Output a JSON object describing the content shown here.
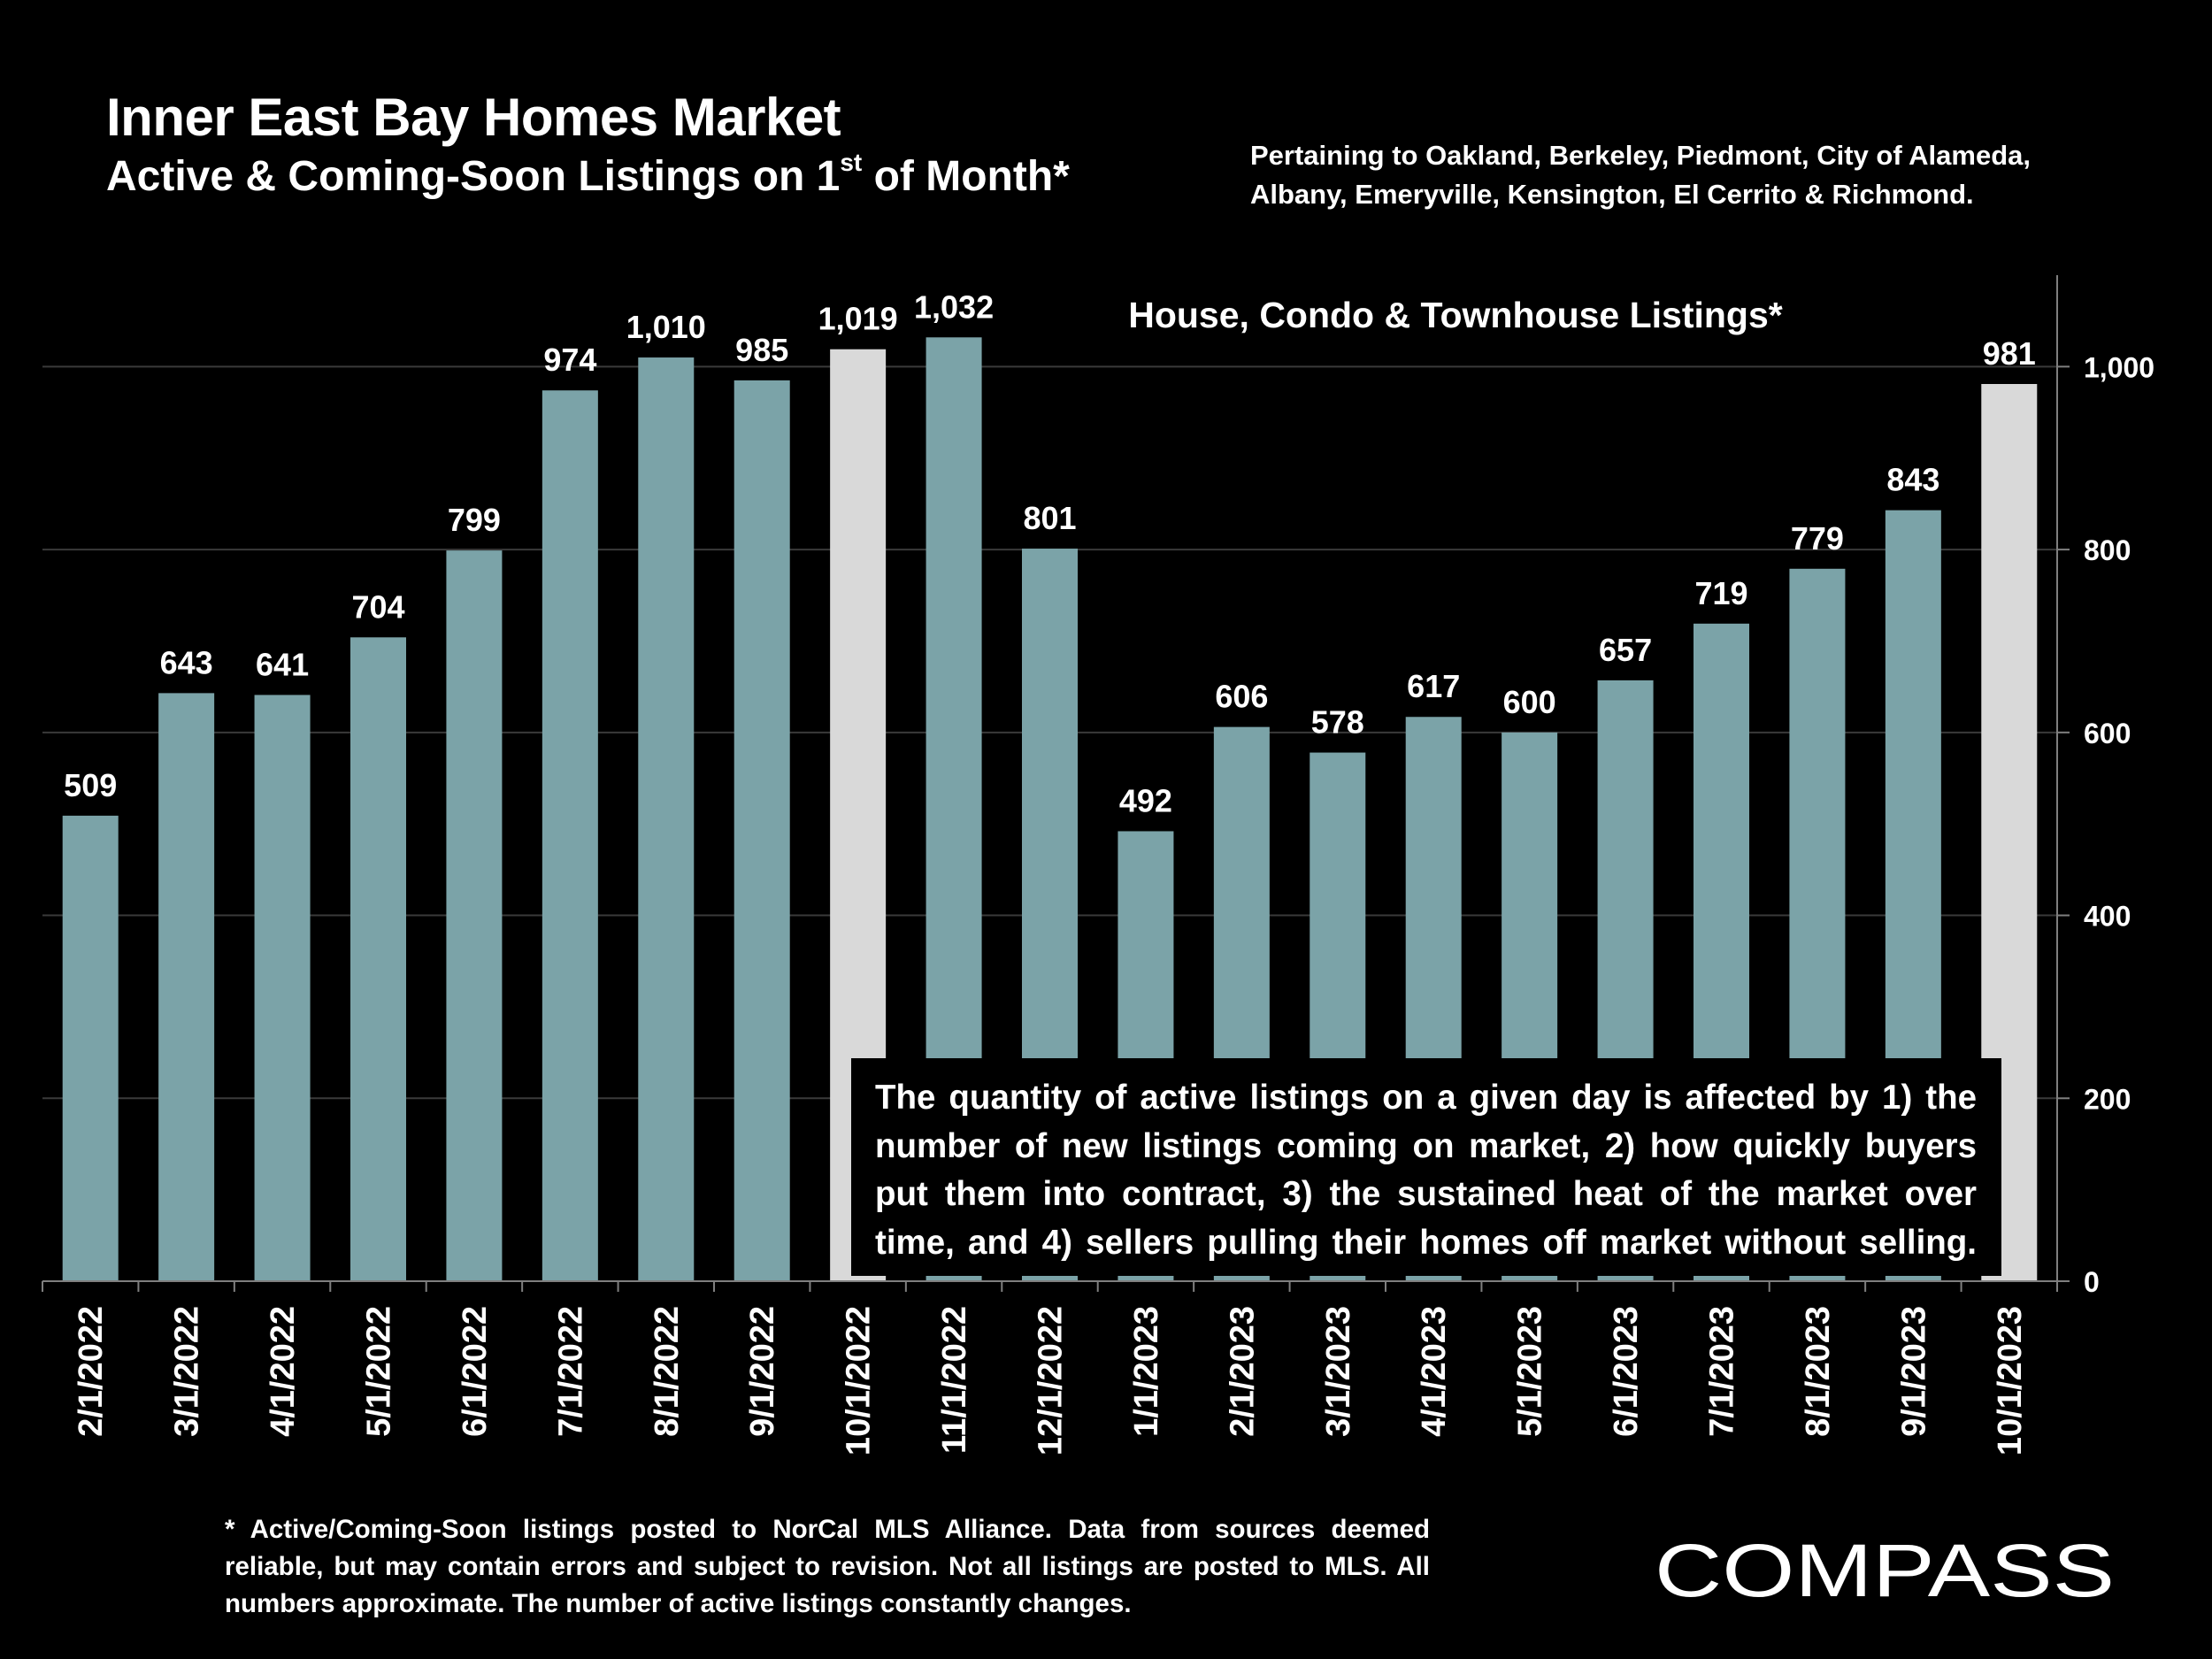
{
  "header": {
    "title": "Inner East Bay Homes Market",
    "subtitle_pre": "Active & Coming-Soon Listings on 1",
    "subtitle_sup": "st",
    "subtitle_post": " of Month*",
    "pertaining": "Pertaining to Oakland, Berkeley, Piedmont, City of Alameda, Albany, Emeryville, Kensington, El Cerrito & Richmond."
  },
  "chart_data": {
    "type": "bar",
    "title": "House, Condo & Townhouse Listings*",
    "categories": [
      "2/1/2022",
      "3/1/2022",
      "4/1/2022",
      "5/1/2022",
      "6/1/2022",
      "7/1/2022",
      "8/1/2022",
      "9/1/2022",
      "10/1/2022",
      "11/1/2022",
      "12/1/2022",
      "1/1/2023",
      "2/1/2023",
      "3/1/2023",
      "4/1/2023",
      "5/1/2023",
      "6/1/2023",
      "7/1/2023",
      "8/1/2023",
      "9/1/2023",
      "10/1/2023"
    ],
    "values": [
      509,
      643,
      641,
      704,
      799,
      974,
      1010,
      985,
      1019,
      1032,
      801,
      492,
      606,
      578,
      617,
      600,
      657,
      719,
      779,
      843,
      981
    ],
    "value_labels": [
      "509",
      "643",
      "641",
      "704",
      "799",
      "974",
      "1,010",
      "985",
      "1,019",
      "1,032",
      "801",
      "492",
      "606",
      "578",
      "617",
      "600",
      "657",
      "719",
      "779",
      "843",
      "981"
    ],
    "highlighted_categories": [
      "10/1/2022",
      "10/1/2023"
    ],
    "ylim": [
      0,
      1100
    ],
    "yticks": [
      0,
      200,
      400,
      600,
      800,
      1000
    ],
    "ytick_labels": [
      "0",
      "200",
      "400",
      "600",
      "800",
      "1,000"
    ],
    "y_axis_side": "right",
    "grid": true,
    "xlabel": "",
    "ylabel": "",
    "colors": {
      "bar": "#7BA3A8",
      "highlight": "#D9D9D9",
      "grid": "#3A3A3A",
      "axis": "#7F7F7F"
    }
  },
  "callout": {
    "text": "The quantity of active listings on a given day is affected by 1) the number of new listings coming on market, 2) how quickly buyers put them into contract, 3) the sustained heat of the market over time, and 4) sellers pulling their homes off market without selling."
  },
  "footnote": {
    "text": "* Active/Coming-Soon listings posted to NorCal MLS Alliance.  Data from sources deemed reliable, but may contain errors and subject to revision.  Not all listings are posted to MLS. All numbers approximate. The number of active listings constantly changes."
  },
  "logo": {
    "text": "COMPASS"
  }
}
